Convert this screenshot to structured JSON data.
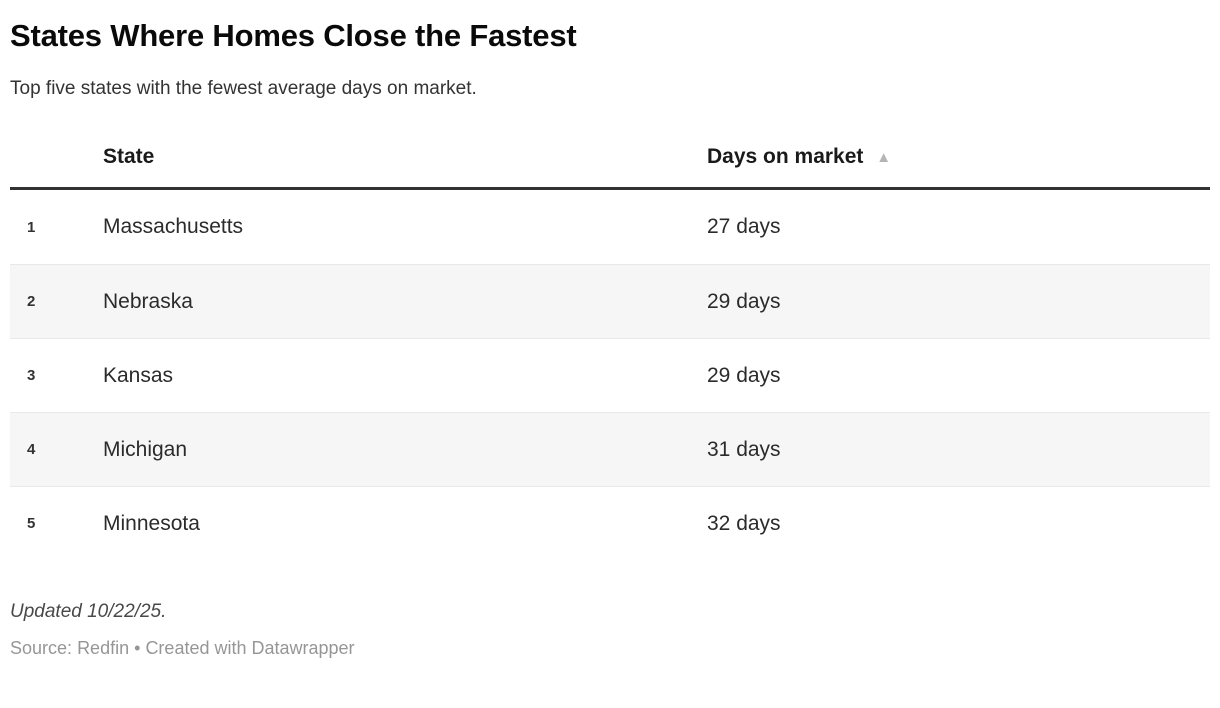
{
  "header": {
    "title": "States Where Homes Close the Fastest",
    "subtitle": "Top five states with the fewest average days on market."
  },
  "table": {
    "columns": {
      "rank": "",
      "state": "State",
      "value": "Days on market"
    },
    "sort_icon": "▲",
    "rows": [
      {
        "rank": "1",
        "state": "Massachusetts",
        "value": "27 days"
      },
      {
        "rank": "2",
        "state": "Nebraska",
        "value": "29 days"
      },
      {
        "rank": "3",
        "state": "Kansas",
        "value": "29 days"
      },
      {
        "rank": "4",
        "state": "Michigan",
        "value": "31 days"
      },
      {
        "rank": "5",
        "state": "Minnesota",
        "value": "32 days"
      }
    ]
  },
  "footer": {
    "updated": "Updated 10/22/25.",
    "source_label": "Source:",
    "source_name": "Redfin",
    "separator": "•",
    "attribution": "Created with Datawrapper"
  },
  "colors": {
    "title_text": "#0a0a0a",
    "body_text": "#333333",
    "header_border": "#333333",
    "row_alt_background": "#f6f6f6",
    "row_divider": "#e8e8e8",
    "sort_icon": "#b5b5b5",
    "muted_text": "#969696"
  },
  "chart_data": {
    "type": "table",
    "title": "States Where Homes Close the Fastest",
    "subtitle": "Top five states with the fewest average days on market.",
    "columns": [
      "Rank",
      "State",
      "Days on market"
    ],
    "rows": [
      [
        1,
        "Massachusetts",
        27
      ],
      [
        2,
        "Nebraska",
        29
      ],
      [
        3,
        "Kansas",
        29
      ],
      [
        4,
        "Michigan",
        31
      ],
      [
        5,
        "Minnesota",
        32
      ]
    ],
    "value_unit": "days",
    "sort": {
      "column": "Days on market",
      "direction": "ascending"
    },
    "footer_updated": "Updated 10/22/25.",
    "footer_source": "Source: Redfin • Created with Datawrapper"
  }
}
